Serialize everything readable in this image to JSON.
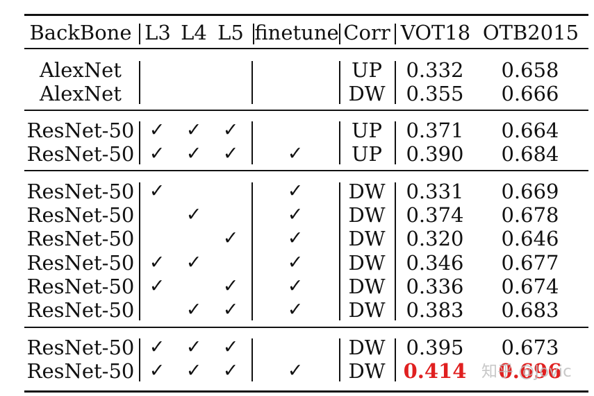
{
  "table": {
    "headers": {
      "backbone": "BackBone",
      "l3": "L3",
      "l4": "L4",
      "l5": "L5",
      "finetune": "finetune",
      "corr": "Corr",
      "vot18": "VOT18",
      "otb2015": "OTB2015"
    },
    "check_glyph": "✓",
    "rows": [
      {
        "backbone": "AlexNet",
        "corr": "UP",
        "vot18": "0.332",
        "otb2015": "0.658"
      },
      {
        "backbone": "AlexNet",
        "corr": "DW",
        "vot18": "0.355",
        "otb2015": "0.666"
      },
      {
        "backbone": "ResNet-50",
        "l3": true,
        "l4": true,
        "l5": true,
        "corr": "UP",
        "vot18": "0.371",
        "otb2015": "0.664"
      },
      {
        "backbone": "ResNet-50",
        "l3": true,
        "l4": true,
        "l5": true,
        "finetune": true,
        "corr": "UP",
        "vot18": "0.390",
        "otb2015": "0.684"
      },
      {
        "backbone": "ResNet-50",
        "l3": true,
        "finetune": true,
        "corr": "DW",
        "vot18": "0.331",
        "otb2015": "0.669"
      },
      {
        "backbone": "ResNet-50",
        "l4": true,
        "finetune": true,
        "corr": "DW",
        "vot18": "0.374",
        "otb2015": "0.678"
      },
      {
        "backbone": "ResNet-50",
        "l5": true,
        "finetune": true,
        "corr": "DW",
        "vot18": "0.320",
        "otb2015": "0.646"
      },
      {
        "backbone": "ResNet-50",
        "l3": true,
        "l4": true,
        "finetune": true,
        "corr": "DW",
        "vot18": "0.346",
        "otb2015": "0.677"
      },
      {
        "backbone": "ResNet-50",
        "l3": true,
        "l5": true,
        "finetune": true,
        "corr": "DW",
        "vot18": "0.336",
        "otb2015": "0.674"
      },
      {
        "backbone": "ResNet-50",
        "l4": true,
        "l5": true,
        "finetune": true,
        "corr": "DW",
        "vot18": "0.383",
        "otb2015": "0.683"
      },
      {
        "backbone": "ResNet-50",
        "l3": true,
        "l4": true,
        "l5": true,
        "corr": "DW",
        "vot18": "0.395",
        "otb2015": "0.673"
      },
      {
        "backbone": "ResNet-50",
        "l3": true,
        "l4": true,
        "l5": true,
        "finetune": true,
        "corr": "DW",
        "vot18": "0.414",
        "otb2015": "0.696",
        "highlight": true
      }
    ]
  },
  "colors": {
    "text": "#111111",
    "highlight": "#e02020"
  },
  "watermark": {
    "text": "知乎 @Jovic"
  }
}
